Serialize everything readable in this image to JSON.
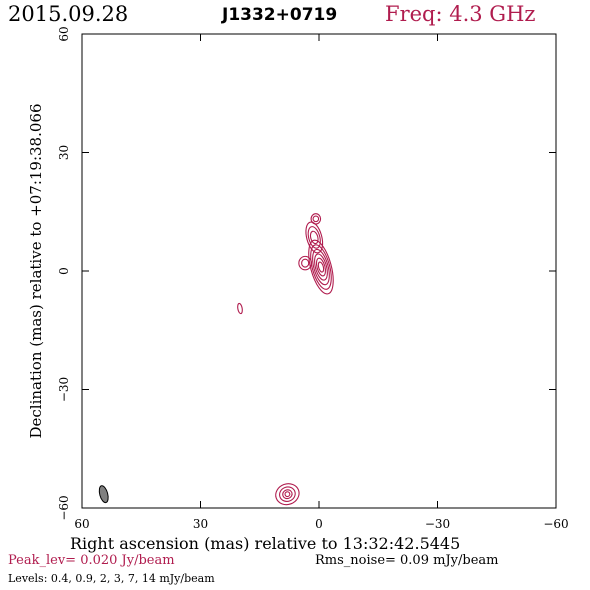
{
  "header": {
    "date": "2015.09.28",
    "source": "J1332+0719",
    "freq": "Freq: 4.3 GHz"
  },
  "footer": {
    "peak": "Peak_lev=  0.020 Jy/beam",
    "rms": "Rms_noise= 0.09 mJy/beam",
    "levels": "Levels: 0.4, 0.9,  2,  3,  7,  14 mJy/beam"
  },
  "colors": {
    "accent": "#b01c4e",
    "axis": "#000000",
    "beam": "#808080"
  },
  "chart_data": {
    "type": "contour",
    "title": "J1332+0719",
    "xlabel": "Right ascension (mas) relative to 13:32:42.5445",
    "ylabel": "Declination (mas) relative to +07:19:38.066",
    "xlim": [
      60,
      -60
    ],
    "ylim": [
      -60,
      60
    ],
    "x_ticks": [
      60,
      30,
      0,
      -30,
      -60
    ],
    "y_ticks": [
      60,
      30,
      0,
      -30,
      -60
    ],
    "x_tick_labels": [
      "60",
      "30",
      "0",
      "−30",
      "−60"
    ],
    "y_tick_labels": [
      "60",
      "30",
      "0",
      "−30",
      "−60"
    ],
    "contour_levels_mJy": [
      0.4,
      0.9,
      2,
      3,
      7,
      14
    ],
    "components": [
      {
        "name": "core",
        "cx": -0.5,
        "cy": 1,
        "levels": [
          {
            "rx": 2.6,
            "ry": 7.0,
            "angle": 15
          },
          {
            "rx": 2.2,
            "ry": 5.8,
            "angle": 15
          },
          {
            "rx": 1.8,
            "ry": 4.6,
            "angle": 15
          },
          {
            "rx": 1.4,
            "ry": 3.4,
            "angle": 15
          },
          {
            "rx": 1.0,
            "ry": 2.3,
            "angle": 15
          },
          {
            "rx": 0.6,
            "ry": 1.3,
            "angle": 15
          }
        ]
      },
      {
        "name": "jet-north",
        "cx": 1.2,
        "cy": 8.5,
        "levels": [
          {
            "rx": 1.9,
            "ry": 4.0,
            "angle": 15
          },
          {
            "rx": 1.4,
            "ry": 2.8,
            "angle": 15
          },
          {
            "rx": 0.9,
            "ry": 1.6,
            "angle": 15
          }
        ]
      },
      {
        "name": "jet-tip",
        "cx": 0.8,
        "cy": 13.2,
        "levels": [
          {
            "rx": 1.2,
            "ry": 1.3,
            "angle": 0
          },
          {
            "rx": 0.7,
            "ry": 0.7,
            "angle": 0
          }
        ]
      },
      {
        "name": "east-blob",
        "cx": 3.5,
        "cy": 2.0,
        "levels": [
          {
            "rx": 1.6,
            "ry": 1.7,
            "angle": 0
          },
          {
            "rx": 0.9,
            "ry": 1.0,
            "angle": 0
          }
        ]
      },
      {
        "name": "isolated-knot",
        "cx": 20.0,
        "cy": -9.5,
        "levels": [
          {
            "rx": 0.55,
            "ry": 1.3,
            "angle": 10
          }
        ]
      },
      {
        "name": "south-feature",
        "cx": 8.0,
        "cy": -56.5,
        "levels": [
          {
            "rx": 3.0,
            "ry": 2.6,
            "angle": 20
          },
          {
            "rx": 2.0,
            "ry": 1.8,
            "angle": 20
          },
          {
            "rx": 1.2,
            "ry": 1.1,
            "angle": 20
          },
          {
            "rx": 0.6,
            "ry": 0.6,
            "angle": 20
          }
        ]
      }
    ],
    "beam": {
      "cx": 54.5,
      "cy": -56.5,
      "rx": 1.0,
      "ry": 2.2,
      "angle": 15
    }
  }
}
